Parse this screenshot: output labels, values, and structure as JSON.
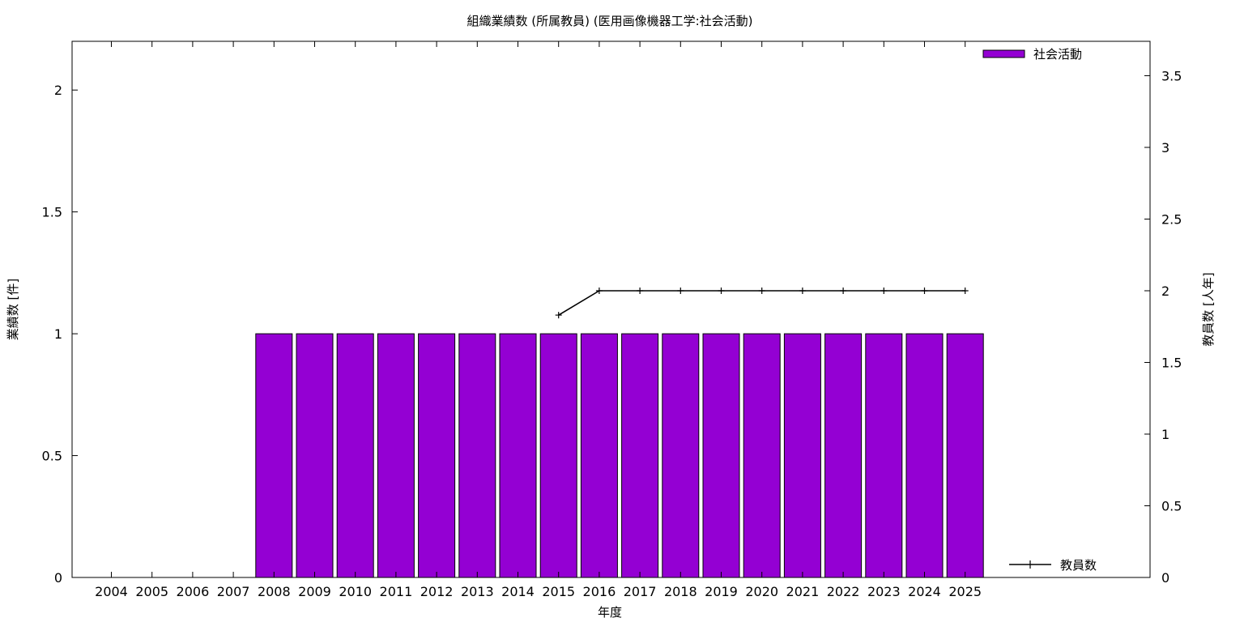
{
  "chart_data": {
    "type": "bar",
    "title": "組織業績数 (所属教員) (医用画像機器工学:社会活動)",
    "xlabel": "年度",
    "ylabel": "業績数 [件]",
    "y2label": "教員数 [人年]",
    "categories": [
      "2004",
      "2005",
      "2006",
      "2007",
      "2008",
      "2009",
      "2010",
      "2011",
      "2012",
      "2013",
      "2014",
      "2015",
      "2016",
      "2017",
      "2018",
      "2019",
      "2020",
      "2021",
      "2022",
      "2023",
      "2024",
      "2025"
    ],
    "ylim": [
      0,
      2.2
    ],
    "y2lim": [
      0,
      3.74
    ],
    "yticks": [
      0,
      0.5,
      1,
      1.5,
      2
    ],
    "y2ticks": [
      0,
      0.5,
      1,
      1.5,
      2,
      2.5,
      3,
      3.5
    ],
    "grid": false,
    "series": [
      {
        "name": "社会活動",
        "type": "bar",
        "axis": "left",
        "color": "#9400d3",
        "values": [
          0,
          0,
          0,
          0,
          1,
          1,
          1,
          1,
          1,
          1,
          1,
          1,
          1,
          1,
          1,
          1,
          1,
          1,
          1,
          1,
          1,
          1
        ]
      },
      {
        "name": "教員数",
        "type": "line",
        "axis": "right",
        "color": "#000000",
        "x": [
          "2015",
          "2016",
          "2017",
          "2018",
          "2019",
          "2020",
          "2021",
          "2022",
          "2023",
          "2024",
          "2025"
        ],
        "values": [
          1.83,
          2,
          2,
          2,
          2,
          2,
          2,
          2,
          2,
          2,
          2
        ]
      }
    ],
    "legend_position": "top-right"
  }
}
